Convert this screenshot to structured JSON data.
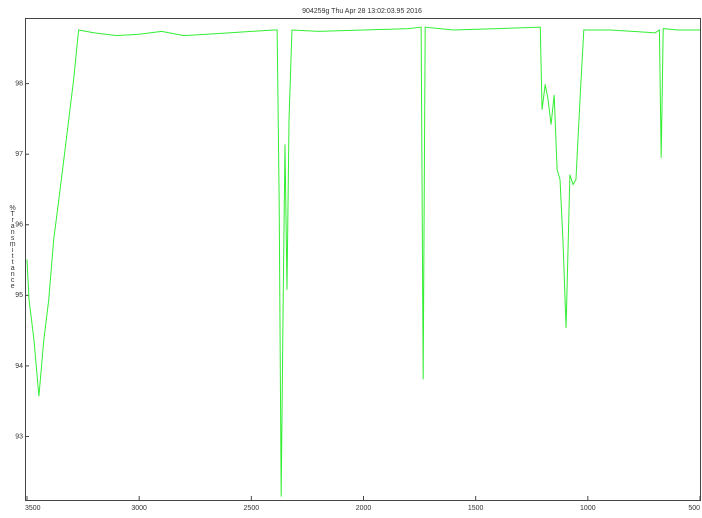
{
  "chart_data": {
    "type": "line",
    "title": "904259g   Thu Apr 28 13:02:03.95 2016",
    "y_label": "%Transmittance",
    "xlim": [
      3500,
      500
    ],
    "xticks": [
      3500,
      3000,
      2500,
      2000,
      1500,
      1000,
      500
    ],
    "ylim": [
      92.1,
      98.93
    ],
    "yticks": [
      93,
      94,
      95,
      96,
      97,
      98
    ],
    "series": [
      {
        "color": "#33ee33",
        "x": [
          3500,
          3491,
          3469,
          3447,
          3425,
          3403,
          3381,
          3358,
          3336,
          3314,
          3292,
          3270,
          3200,
          3100,
          3000,
          2900,
          2800,
          2700,
          2600,
          2500,
          2400,
          2385,
          2376,
          2367,
          2358,
          2350,
          2341,
          2332,
          2319,
          2200,
          2000,
          1800,
          1743,
          1734,
          1725,
          1600,
          1400,
          1212,
          1204,
          1190,
          1177,
          1164,
          1150,
          1137,
          1124,
          1111,
          1097,
          1080,
          1066,
          1053,
          1035,
          1018,
          900,
          800,
          700,
          681,
          673,
          664,
          600,
          500
        ],
        "values": [
          95.51,
          94.94,
          94.37,
          93.57,
          94.37,
          94.94,
          95.79,
          96.36,
          96.92,
          97.49,
          98.06,
          98.76,
          98.72,
          98.68,
          98.7,
          98.74,
          98.68,
          98.7,
          98.72,
          98.74,
          98.76,
          98.76,
          96.36,
          92.15,
          94.94,
          97.14,
          95.08,
          97.49,
          98.76,
          98.74,
          98.76,
          98.78,
          98.8,
          93.81,
          98.8,
          98.76,
          98.78,
          98.8,
          97.63,
          97.99,
          97.77,
          97.42,
          97.84,
          96.78,
          96.64,
          95.79,
          94.54,
          96.71,
          96.57,
          96.64,
          97.77,
          98.76,
          98.76,
          98.74,
          98.72,
          98.76,
          96.95,
          98.78,
          98.76,
          98.76
        ]
      }
    ]
  }
}
